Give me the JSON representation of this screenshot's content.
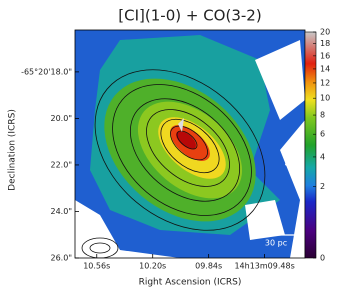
{
  "chart_data": {
    "type": "image",
    "title": "[CI](1-0) + CO(3-2)",
    "x_label": "Right Ascension (ICRS)",
    "y_label": "Declination (ICRS)",
    "xlim": [
      10.7,
      9.22
    ],
    "ylim": [
      26.0,
      16.2
    ],
    "xticks": [
      {
        "value": 10.56,
        "label": "10.56s"
      },
      {
        "value": 10.2,
        "label": "10.20s"
      },
      {
        "value": 9.84,
        "label": "09.84s"
      },
      {
        "value": 9.48,
        "label": "14h13m09.48s"
      }
    ],
    "yticks": [
      {
        "value": 18.0,
        "label": "-65°20'18.0\""
      },
      {
        "value": 20.0,
        "label": "20.0\""
      },
      {
        "value": 22.0,
        "label": "22.0\""
      },
      {
        "value": 24.0,
        "label": "24.0\""
      },
      {
        "value": 26.0,
        "label": "26.0\""
      }
    ],
    "colorbar": {
      "lim": [
        0,
        20
      ],
      "stretch": "sqrt",
      "ticks": [
        0,
        2,
        4,
        6,
        8,
        10,
        12,
        14,
        16,
        18,
        20
      ]
    },
    "scalebar": "30 pc"
  }
}
